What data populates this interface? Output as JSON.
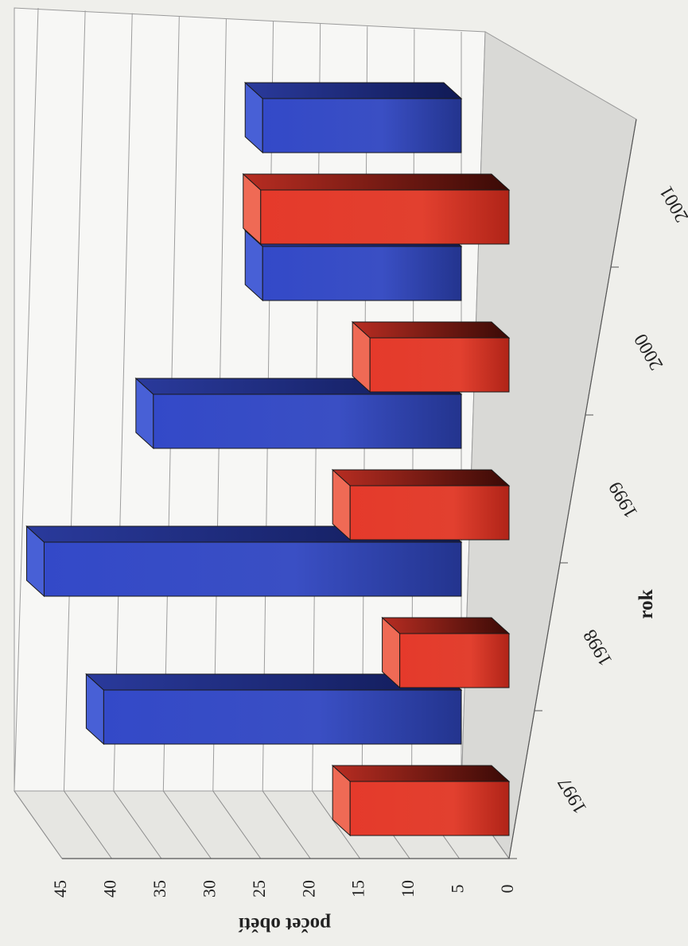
{
  "chart_data": {
    "type": "bar",
    "orientation": "3d-rotated",
    "xlabel": "rok",
    "ylabel": "počet obětí",
    "categories": [
      "1997",
      "1998",
      "1999",
      "2000",
      "2001"
    ],
    "y_ticks": [
      "0",
      "5",
      "10",
      "15",
      "20",
      "25",
      "30",
      "35",
      "40",
      "45"
    ],
    "ylim": [
      0,
      45
    ],
    "grid": true,
    "legend": "none",
    "series": [
      {
        "values": [
          36,
          42,
          31,
          20,
          20
        ],
        "color": "#3a4fc4"
      },
      {
        "values": [
          16,
          11,
          16,
          14,
          25
        ],
        "color": "#e23a2a"
      }
    ]
  }
}
